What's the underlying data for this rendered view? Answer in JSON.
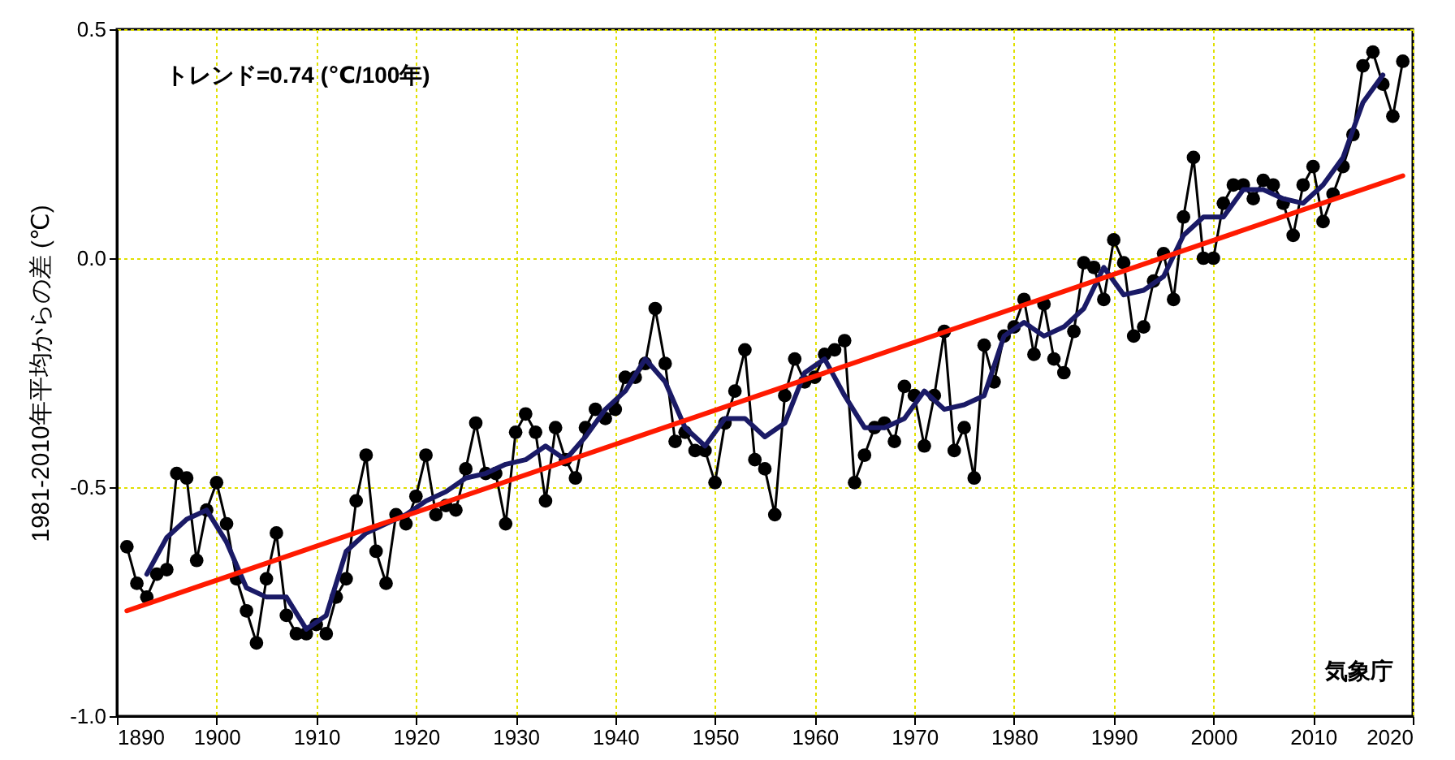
{
  "chart_data": {
    "type": "line",
    "ylabel": "1981-2010年平均からの差 (℃)",
    "xlim": [
      1890,
      2020
    ],
    "ylim": [
      -1.0,
      0.5
    ],
    "xticks": [
      1890,
      1900,
      1910,
      1920,
      1930,
      1940,
      1950,
      1960,
      1970,
      1980,
      1990,
      2000,
      2010,
      2020
    ],
    "yticks": [
      {
        "value": -1.0,
        "label": "-1.0"
      },
      {
        "value": -0.5,
        "label": "-0.5"
      },
      {
        "value": 0,
        "label": "0.0"
      },
      {
        "value": 0.5,
        "label": "0.5"
      }
    ],
    "grid": true,
    "annotations": [
      "トレンド=0.74 (℃/100年)",
      "気象庁"
    ],
    "series": [
      {
        "color": "#000000",
        "marker": "circle",
        "x": [
          1891,
          1892,
          1893,
          1894,
          1895,
          1896,
          1897,
          1898,
          1899,
          1900,
          1901,
          1902,
          1903,
          1904,
          1905,
          1906,
          1907,
          1908,
          1909,
          1910,
          1911,
          1912,
          1913,
          1914,
          1915,
          1916,
          1917,
          1918,
          1919,
          1920,
          1921,
          1922,
          1923,
          1924,
          1925,
          1926,
          1927,
          1928,
          1929,
          1930,
          1931,
          1932,
          1933,
          1934,
          1935,
          1936,
          1937,
          1938,
          1939,
          1940,
          1941,
          1942,
          1943,
          1944,
          1945,
          1946,
          1947,
          1948,
          1949,
          1950,
          1951,
          1952,
          1953,
          1954,
          1955,
          1956,
          1957,
          1958,
          1959,
          1960,
          1961,
          1962,
          1963,
          1964,
          1965,
          1966,
          1967,
          1968,
          1969,
          1970,
          1971,
          1972,
          1973,
          1974,
          1975,
          1976,
          1977,
          1978,
          1979,
          1980,
          1981,
          1982,
          1983,
          1984,
          1985,
          1986,
          1987,
          1988,
          1989,
          1990,
          1991,
          1992,
          1993,
          1994,
          1995,
          1996,
          1997,
          1998,
          1999,
          2000,
          2001,
          2002,
          2003,
          2004,
          2005,
          2006,
          2007,
          2008,
          2009,
          2010,
          2011,
          2012,
          2013,
          2014,
          2015,
          2016,
          2017,
          2018,
          2019
        ],
        "values": [
          -0.63,
          -0.71,
          -0.74,
          -0.69,
          -0.68,
          -0.47,
          -0.48,
          -0.66,
          -0.55,
          -0.49,
          -0.58,
          -0.7,
          -0.77,
          -0.84,
          -0.7,
          -0.6,
          -0.78,
          -0.82,
          -0.82,
          -0.8,
          -0.82,
          -0.74,
          -0.7,
          -0.53,
          -0.43,
          -0.64,
          -0.71,
          -0.56,
          -0.58,
          -0.52,
          -0.43,
          -0.56,
          -0.54,
          -0.55,
          -0.46,
          -0.36,
          -0.47,
          -0.47,
          -0.58,
          -0.38,
          -0.34,
          -0.38,
          -0.53,
          -0.37,
          -0.44,
          -0.48,
          -0.37,
          -0.33,
          -0.35,
          -0.33,
          -0.26,
          -0.26,
          -0.23,
          -0.11,
          -0.23,
          -0.4,
          -0.38,
          -0.42,
          -0.42,
          -0.49,
          -0.36,
          -0.29,
          -0.2,
          -0.44,
          -0.46,
          -0.56,
          -0.3,
          -0.22,
          -0.27,
          -0.26,
          -0.21,
          -0.2,
          -0.18,
          -0.49,
          -0.43,
          -0.37,
          -0.36,
          -0.4,
          -0.28,
          -0.3,
          -0.41,
          -0.3,
          -0.16,
          -0.42,
          -0.37,
          -0.48,
          -0.19,
          -0.27,
          -0.17,
          -0.15,
          -0.09,
          -0.21,
          -0.1,
          -0.22,
          -0.25,
          -0.16,
          -0.01,
          -0.02,
          -0.09,
          0.04,
          -0.01,
          -0.17,
          -0.15,
          -0.05,
          0.01,
          -0.09,
          0.09,
          0.22,
          0.0,
          0.0,
          0.12,
          0.16,
          0.16,
          0.13,
          0.17,
          0.16,
          0.12,
          0.05,
          0.16,
          0.2,
          0.08,
          0.14,
          0.2,
          0.27,
          0.42,
          0.45,
          0.38,
          0.31,
          0.43
        ]
      },
      {
        "color": "#1a1a66",
        "x": [
          1893,
          1895,
          1897,
          1899,
          1901,
          1903,
          1905,
          1907,
          1909,
          1911,
          1913,
          1915,
          1917,
          1919,
          1921,
          1923,
          1925,
          1927,
          1929,
          1931,
          1933,
          1935,
          1937,
          1939,
          1941,
          1943,
          1945,
          1947,
          1949,
          1951,
          1953,
          1955,
          1957,
          1959,
          1961,
          1963,
          1965,
          1967,
          1969,
          1971,
          1973,
          1975,
          1977,
          1979,
          1981,
          1983,
          1985,
          1987,
          1989,
          1991,
          1993,
          1995,
          1997,
          1999,
          2001,
          2003,
          2005,
          2007,
          2009,
          2011,
          2013,
          2015,
          2017
        ],
        "values": [
          -0.69,
          -0.61,
          -0.57,
          -0.55,
          -0.62,
          -0.72,
          -0.74,
          -0.74,
          -0.81,
          -0.78,
          -0.64,
          -0.6,
          -0.58,
          -0.56,
          -0.53,
          -0.51,
          -0.48,
          -0.47,
          -0.45,
          -0.44,
          -0.41,
          -0.44,
          -0.39,
          -0.33,
          -0.29,
          -0.22,
          -0.27,
          -0.37,
          -0.41,
          -0.35,
          -0.35,
          -0.39,
          -0.36,
          -0.25,
          -0.22,
          -0.3,
          -0.37,
          -0.37,
          -0.35,
          -0.29,
          -0.33,
          -0.32,
          -0.3,
          -0.17,
          -0.14,
          -0.17,
          -0.15,
          -0.11,
          -0.02,
          -0.08,
          -0.07,
          -0.04,
          0.05,
          0.09,
          0.09,
          0.15,
          0.15,
          0.13,
          0.12,
          0.16,
          0.22,
          0.34,
          0.4
        ]
      },
      {
        "color": "#ff1a00",
        "x": [
          1891,
          2019
        ],
        "values": [
          -0.77,
          0.18
        ]
      }
    ]
  }
}
